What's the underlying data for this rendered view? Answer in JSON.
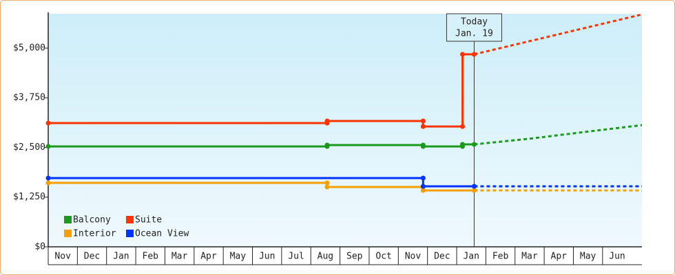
{
  "chart_data": {
    "type": "step-line",
    "categories": [
      "Nov",
      "Dec",
      "Jan",
      "Feb",
      "Mar",
      "Apr",
      "May",
      "Jun",
      "Jul",
      "Aug",
      "Sep",
      "Oct",
      "Nov",
      "Dec",
      "Jan",
      "Feb",
      "Mar",
      "Apr",
      "May",
      "Jun"
    ],
    "xlim": [
      0,
      20.35
    ],
    "ylim": [
      0,
      5865
    ],
    "yticks": [
      {
        "value": 0,
        "label": "$0"
      },
      {
        "value": 1250,
        "label": "$1,250"
      },
      {
        "value": 2500,
        "label": "$2,500"
      },
      {
        "value": 3750,
        "label": "$3,750"
      },
      {
        "value": 5000,
        "label": "$5,000"
      }
    ],
    "annotation": {
      "lines": [
        "Today",
        "Jan. 19"
      ],
      "x": 14.6
    },
    "series": [
      {
        "name": "Balcony",
        "color": "#1a9a1a",
        "x": [
          0,
          9.56,
          9.56,
          12.85,
          12.85,
          14.2,
          14.2,
          14.6
        ],
        "values": [
          2526,
          2526,
          2561,
          2561,
          2526,
          2526,
          2578,
          2578
        ],
        "projection": {
          "x": [
            14.6,
            16.5,
            18.5,
            20.35
          ],
          "values": [
            2578,
            2720,
            2900,
            3062
          ]
        }
      },
      {
        "name": "Suite",
        "color": "#ff3300",
        "x": [
          0,
          9.56,
          9.56,
          12.85,
          12.85,
          14.2,
          14.2,
          14.6
        ],
        "values": [
          3114,
          3114,
          3166,
          3166,
          3028,
          3028,
          4844,
          4844
        ],
        "projection": {
          "x": [
            14.6,
            20.35
          ],
          "values": [
            4844,
            5848
          ]
        }
      },
      {
        "name": "Interior",
        "color": "#f5a000",
        "x": [
          0,
          9.56,
          9.56,
          12.85,
          12.85,
          14.6
        ],
        "values": [
          1609,
          1609,
          1505,
          1505,
          1419,
          1419
        ],
        "projection": {
          "x": [
            14.6,
            20.35
          ],
          "values": [
            1419,
            1419
          ]
        }
      },
      {
        "name": "Ocean View",
        "color": "#0033ff",
        "x": [
          0,
          12.85,
          12.85,
          14.6
        ],
        "values": [
          1730,
          1730,
          1522,
          1522
        ],
        "projection": {
          "x": [
            14.6,
            20.35
          ],
          "values": [
            1522,
            1522
          ]
        }
      }
    ]
  }
}
